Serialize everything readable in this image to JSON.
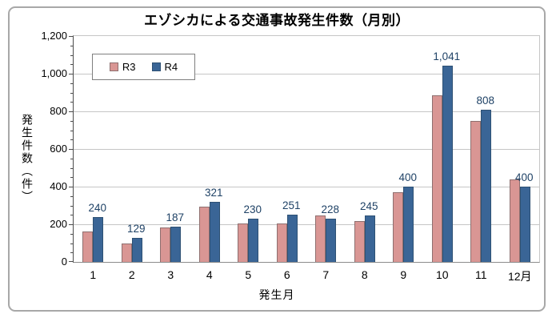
{
  "chart_data": {
    "type": "bar",
    "title": "エゾシカによる交通事故発生件数（月別）",
    "xlabel": "発生月",
    "ylabel": "発生件数（件）",
    "categories": [
      "1",
      "2",
      "3",
      "4",
      "5",
      "6",
      "7",
      "8",
      "9",
      "10",
      "11",
      "12月"
    ],
    "series": [
      {
        "name": "R3",
        "color": "#D99694",
        "border_color": "#8E6F6F",
        "values": [
          162,
          96,
          182,
          293,
          206,
          203,
          247,
          219,
          372,
          884,
          751,
          437
        ]
      },
      {
        "name": "R4",
        "color": "#3A6596",
        "border_color": "#2E5174",
        "values": [
          240,
          129,
          187,
          321,
          230,
          251,
          228,
          245,
          400,
          1041,
          808,
          400
        ]
      }
    ],
    "data_labels": {
      "series": "R4",
      "labels": [
        "240",
        "129",
        "187",
        "321",
        "230",
        "251",
        "228",
        "245",
        "400",
        "1,041",
        "808",
        "400"
      ],
      "color": "#1F4266"
    },
    "ylim": [
      0,
      1200
    ],
    "ytick_step": 200,
    "minor_tick_step": 50,
    "yticks": [
      "0",
      "200",
      "400",
      "600",
      "800",
      "1,000",
      "1,200"
    ],
    "grid": "horizontal",
    "legend_position": "inside-top-left"
  },
  "colors": {
    "gridline": "#C6C6C6",
    "axis_line": "#4d4d4d",
    "frame_border": "#A8A8A8",
    "background": "#ffffff",
    "text": "#000000"
  }
}
